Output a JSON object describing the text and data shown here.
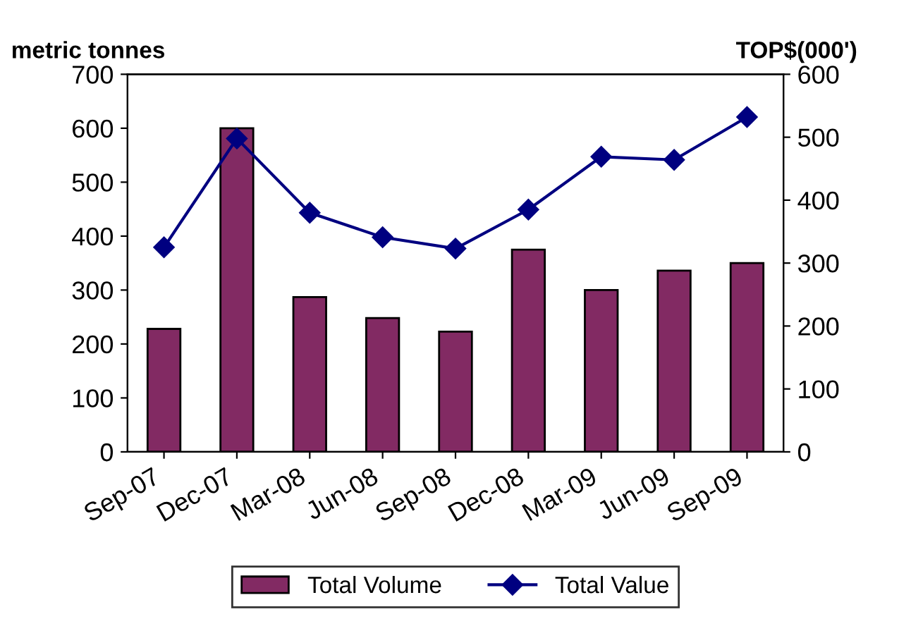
{
  "chart_data": {
    "type": "bar",
    "ylabel": "metric tonnes",
    "y2label": "TOP$(000')",
    "categories": [
      "Sep-07",
      "Dec-07",
      "Mar-08",
      "Jun-08",
      "Sep-08",
      "Dec-08",
      "Mar-09",
      "Jun-09",
      "Sep-09"
    ],
    "series": [
      {
        "name": "Total Volume",
        "color": "#822a63",
        "values": [
          228,
          600,
          287,
          248,
          223,
          375,
          300,
          336,
          350
        ]
      },
      {
        "name": "Total Value",
        "type": "line",
        "axis": "y2",
        "color": "#000080",
        "marker": "diamond",
        "values": [
          325,
          498,
          380,
          341,
          323,
          385,
          469,
          464,
          532
        ]
      }
    ],
    "ylim": [
      0,
      700
    ],
    "yticks": [
      0,
      100,
      200,
      300,
      400,
      500,
      600,
      700
    ],
    "y2lim": [
      0,
      600
    ],
    "y2ticks": [
      0,
      100,
      200,
      300,
      400,
      500,
      600
    ],
    "grid": false,
    "legend": "bottom"
  }
}
